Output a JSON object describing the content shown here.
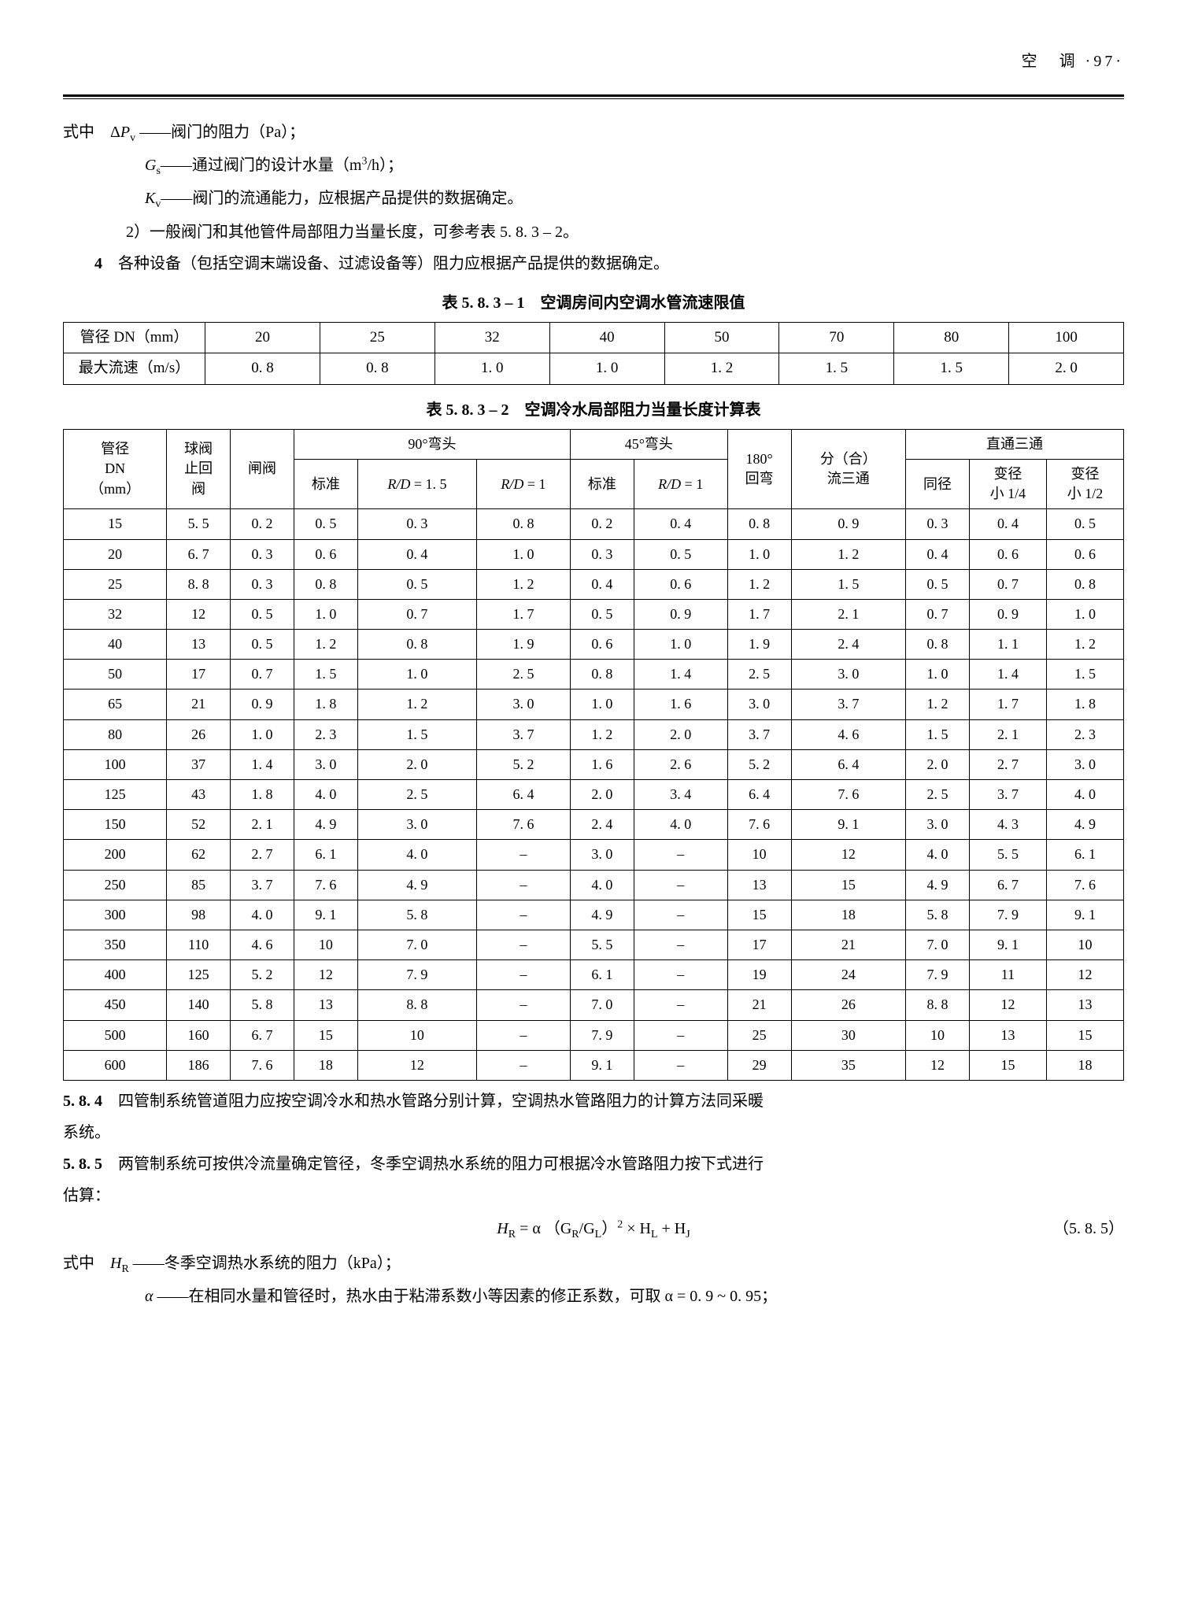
{
  "header": {
    "section": "空　调",
    "page": "·97·"
  },
  "p_defs": {
    "line1_pre": "式中　Δ",
    "line1_sym": "P",
    "line1_sub": "v",
    "line1_post": " ——阀门的阻力（Pa）；",
    "line2_sym": "G",
    "line2_sub": "s",
    "line2_post": "——通过阀门的设计水量（m",
    "line2_sup": "3",
    "line2_tail": "/h）；",
    "line3_sym": "K",
    "line3_sub": "v",
    "line3_post": "——阀门的流通能力，应根据产品提供的数据确定。",
    "line4": "2）一般阀门和其他管件局部阻力当量长度，可参考表 5. 8. 3 – 2。",
    "line5_num": "4",
    "line5_body": "各种设备（包括空调末端设备、过滤设备等）阻力应根据产品提供的数据确定。"
  },
  "table1": {
    "caption": "表 5. 8. 3 – 1　空调房间内空调水管流速限值",
    "row_labels": [
      "管径 DN（mm）",
      "最大流速（m/s）"
    ],
    "columns": [
      "20",
      "25",
      "32",
      "40",
      "50",
      "70",
      "80",
      "100"
    ],
    "values": [
      "0. 8",
      "0. 8",
      "1. 0",
      "1. 0",
      "1. 2",
      "1. 5",
      "1. 5",
      "2. 0"
    ]
  },
  "table2": {
    "caption": "表 5. 8. 3 – 2　空调冷水局部阻力当量长度计算表",
    "head_top": {
      "c0": "管径\nDN\n（mm）",
      "c1": "球阀\n止回\n阀",
      "c2": "闸阀",
      "g90": "90°弯头",
      "g45": "45°弯头",
      "c180": "180°\n回弯",
      "cfen": "分（合）\n流三通",
      "gzt": "直通三通"
    },
    "head_sub": {
      "s90_1": "标准",
      "s90_2": "R/D = 1.5",
      "s90_3": "R/D = 1",
      "s45_1": "标准",
      "s45_2": "R/D = 1",
      "zt_1": "同径",
      "zt_2": "变径\n小 1/4",
      "zt_3": "变径\n小 1/2"
    },
    "rows": [
      [
        "15",
        "5. 5",
        "0. 2",
        "0. 5",
        "0. 3",
        "0. 8",
        "0. 2",
        "0. 4",
        "0. 8",
        "0. 9",
        "0. 3",
        "0. 4",
        "0. 5"
      ],
      [
        "20",
        "6. 7",
        "0. 3",
        "0. 6",
        "0. 4",
        "1. 0",
        "0. 3",
        "0. 5",
        "1. 0",
        "1. 2",
        "0. 4",
        "0. 6",
        "0. 6"
      ],
      [
        "25",
        "8. 8",
        "0. 3",
        "0. 8",
        "0. 5",
        "1. 2",
        "0. 4",
        "0. 6",
        "1. 2",
        "1. 5",
        "0. 5",
        "0. 7",
        "0. 8"
      ],
      [
        "32",
        "12",
        "0. 5",
        "1. 0",
        "0. 7",
        "1. 7",
        "0. 5",
        "0. 9",
        "1. 7",
        "2. 1",
        "0. 7",
        "0. 9",
        "1. 0"
      ],
      [
        "40",
        "13",
        "0. 5",
        "1. 2",
        "0. 8",
        "1. 9",
        "0. 6",
        "1. 0",
        "1. 9",
        "2. 4",
        "0. 8",
        "1. 1",
        "1. 2"
      ],
      [
        "50",
        "17",
        "0. 7",
        "1. 5",
        "1. 0",
        "2. 5",
        "0. 8",
        "1. 4",
        "2. 5",
        "3. 0",
        "1. 0",
        "1. 4",
        "1. 5"
      ],
      [
        "65",
        "21",
        "0. 9",
        "1. 8",
        "1. 2",
        "3. 0",
        "1. 0",
        "1. 6",
        "3. 0",
        "3. 7",
        "1. 2",
        "1. 7",
        "1. 8"
      ],
      [
        "80",
        "26",
        "1. 0",
        "2. 3",
        "1. 5",
        "3. 7",
        "1. 2",
        "2. 0",
        "3. 7",
        "4. 6",
        "1. 5",
        "2. 1",
        "2. 3"
      ],
      [
        "100",
        "37",
        "1. 4",
        "3. 0",
        "2. 0",
        "5. 2",
        "1. 6",
        "2. 6",
        "5. 2",
        "6. 4",
        "2. 0",
        "2. 7",
        "3. 0"
      ],
      [
        "125",
        "43",
        "1. 8",
        "4. 0",
        "2. 5",
        "6. 4",
        "2. 0",
        "3. 4",
        "6. 4",
        "7. 6",
        "2. 5",
        "3. 7",
        "4. 0"
      ],
      [
        "150",
        "52",
        "2. 1",
        "4. 9",
        "3. 0",
        "7. 6",
        "2. 4",
        "4. 0",
        "7. 6",
        "9. 1",
        "3. 0",
        "4. 3",
        "4. 9"
      ],
      [
        "200",
        "62",
        "2. 7",
        "6. 1",
        "4. 0",
        "–",
        "3. 0",
        "–",
        "10",
        "12",
        "4. 0",
        "5. 5",
        "6. 1"
      ],
      [
        "250",
        "85",
        "3. 7",
        "7. 6",
        "4. 9",
        "–",
        "4. 0",
        "–",
        "13",
        "15",
        "4. 9",
        "6. 7",
        "7. 6"
      ],
      [
        "300",
        "98",
        "4. 0",
        "9. 1",
        "5. 8",
        "–",
        "4. 9",
        "–",
        "15",
        "18",
        "5. 8",
        "7. 9",
        "9. 1"
      ],
      [
        "350",
        "110",
        "4. 6",
        "10",
        "7. 0",
        "–",
        "5. 5",
        "–",
        "17",
        "21",
        "7. 0",
        "9. 1",
        "10"
      ],
      [
        "400",
        "125",
        "5. 2",
        "12",
        "7. 9",
        "–",
        "6. 1",
        "–",
        "19",
        "24",
        "7. 9",
        "11",
        "12"
      ],
      [
        "450",
        "140",
        "5. 8",
        "13",
        "8. 8",
        "–",
        "7. 0",
        "–",
        "21",
        "26",
        "8. 8",
        "12",
        "13"
      ],
      [
        "500",
        "160",
        "6. 7",
        "15",
        "10",
        "–",
        "7. 9",
        "–",
        "25",
        "30",
        "10",
        "13",
        "15"
      ],
      [
        "600",
        "186",
        "7. 6",
        "18",
        "12",
        "–",
        "9. 1",
        "–",
        "29",
        "35",
        "12",
        "15",
        "18"
      ]
    ]
  },
  "p584": {
    "num": "5. 8. 4",
    "body": "四管制系统管道阻力应按空调冷水和热水管路分别计算，空调热水管路阻力的计算方法同采暖",
    "body2": "系统。"
  },
  "p585": {
    "num": "5. 8. 5",
    "body": "两管制系统可按供冷流量确定管径，冬季空调热水系统的阻力可根据冷水管路阻力按下式进行",
    "body2": "估算：",
    "formula_pre": "H",
    "formula_sub1": "R",
    "formula_eq": " = α （G",
    "formula_sub2": "R",
    "formula_mid": "/G",
    "formula_sub3": "L",
    "formula_mid2": "）",
    "formula_sup": "2",
    "formula_mid3": " × H",
    "formula_sub4": "L",
    "formula_mid4": " + H",
    "formula_sub5": "J",
    "formula_num": "（5. 8. 5）",
    "def1_pre": "式中　",
    "def1_sym": "H",
    "def1_sub": "R",
    "def1_post": " ——冬季空调热水系统的阻力（kPa）；",
    "def2_sym": "α",
    "def2_post": " ——在相同水量和管径时，热水由于粘滞系数小等因素的修正系数，可取 α = 0. 9 ~ 0. 95；"
  }
}
